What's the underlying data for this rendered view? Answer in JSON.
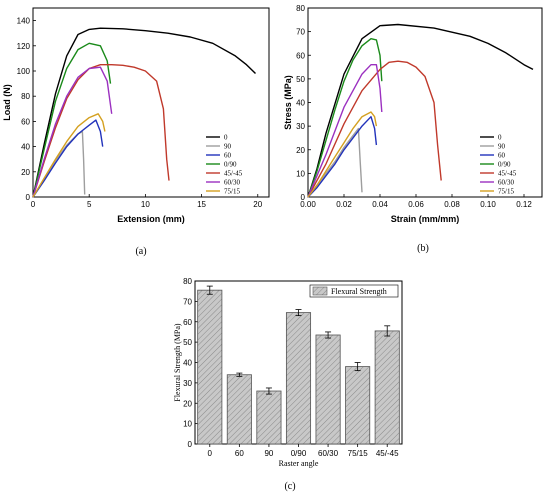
{
  "chart_data": [
    {
      "type": "line",
      "panel_label": "(a)",
      "xlabel": "Extension (mm)",
      "ylabel": "Load (N)",
      "xlim": [
        0,
        21
      ],
      "ylim": [
        0,
        150
      ],
      "xticks": [
        0,
        5,
        10,
        15,
        20
      ],
      "yticks": [
        0,
        20,
        40,
        60,
        80,
        100,
        120,
        140
      ],
      "legend_position": "bottom-right",
      "series": [
        {
          "name": "0",
          "color": "#000000",
          "x": [
            0,
            1,
            2,
            3,
            4,
            5,
            6,
            8,
            10,
            12,
            14,
            16,
            18,
            19,
            19.8
          ],
          "y": [
            0,
            42,
            82,
            112,
            129,
            133,
            134,
            133.5,
            132,
            130,
            127,
            122,
            112,
            105,
            98
          ]
        },
        {
          "name": "90",
          "color": "#9e9e9e",
          "x": [
            0,
            1,
            2,
            3,
            4,
            4.4,
            4.5,
            4.6
          ],
          "y": [
            0,
            14,
            29,
            41,
            50,
            52,
            30,
            2
          ]
        },
        {
          "name": "60",
          "color": "#2233bb",
          "x": [
            0,
            1,
            2,
            3,
            4,
            5,
            5.6,
            6,
            6.2
          ],
          "y": [
            0,
            13,
            27,
            40,
            50,
            57,
            61,
            52,
            40
          ]
        },
        {
          "name": "0/90",
          "color": "#1a8a1a",
          "x": [
            0,
            1,
            2,
            3,
            4,
            5,
            6,
            6.6,
            6.9
          ],
          "y": [
            0,
            38,
            76,
            102,
            117,
            122,
            120,
            108,
            90
          ]
        },
        {
          "name": "45/-45",
          "color": "#c0392b",
          "x": [
            0,
            1,
            2,
            3,
            4,
            5,
            6,
            7,
            8,
            9,
            10,
            11,
            11.6,
            11.9,
            12.1
          ],
          "y": [
            0,
            28,
            55,
            78,
            93,
            102,
            105,
            105,
            104.5,
            103,
            100,
            92,
            70,
            30,
            13
          ]
        },
        {
          "name": "60/30",
          "color": "#9b30c0",
          "x": [
            0,
            1,
            2,
            3,
            4,
            5,
            6,
            6.6,
            7.0
          ],
          "y": [
            0,
            30,
            58,
            80,
            95,
            102,
            103,
            92,
            66
          ]
        },
        {
          "name": "75/15",
          "color": "#d4a020",
          "x": [
            0,
            1,
            2,
            3,
            4,
            5,
            5.8,
            6.2,
            6.4
          ],
          "y": [
            0,
            15,
            30,
            44,
            56,
            63,
            66,
            60,
            52
          ]
        }
      ]
    },
    {
      "type": "line",
      "panel_label": "(b)",
      "xlabel": "Strain (mm/mm)",
      "ylabel": "Stress (MPa)",
      "xlim": [
        0,
        0.13
      ],
      "ylim": [
        0,
        80
      ],
      "xticks": [
        0.0,
        0.02,
        0.04,
        0.06,
        0.08,
        0.1,
        0.12
      ],
      "xtick_labels": [
        "0.00",
        "0.02",
        "0.04",
        "0.06",
        "0.08",
        "0.10",
        "0.12"
      ],
      "yticks": [
        0,
        10,
        20,
        30,
        40,
        50,
        60,
        70,
        80
      ],
      "legend_position": "bottom-right",
      "series": [
        {
          "name": "0",
          "color": "#000000",
          "x": [
            0,
            0.005,
            0.01,
            0.02,
            0.03,
            0.04,
            0.05,
            0.07,
            0.09,
            0.1,
            0.11,
            0.12,
            0.125
          ],
          "y": [
            0,
            12,
            27,
            52,
            67,
            72.5,
            73,
            71.5,
            68,
            65,
            61,
            56,
            54
          ]
        },
        {
          "name": "90",
          "color": "#9e9e9e",
          "x": [
            0,
            0.005,
            0.01,
            0.015,
            0.02,
            0.025,
            0.028,
            0.029,
            0.03
          ],
          "y": [
            0,
            5,
            10,
            15,
            21,
            26,
            29,
            15,
            2
          ]
        },
        {
          "name": "60",
          "color": "#2233bb",
          "x": [
            0,
            0.005,
            0.01,
            0.015,
            0.02,
            0.025,
            0.03,
            0.035,
            0.037,
            0.038
          ],
          "y": [
            0,
            4,
            9,
            14,
            20,
            25,
            30,
            34,
            29,
            22
          ]
        },
        {
          "name": "0/90",
          "color": "#1a8a1a",
          "x": [
            0,
            0.005,
            0.01,
            0.015,
            0.02,
            0.025,
            0.03,
            0.035,
            0.038,
            0.04,
            0.041
          ],
          "y": [
            0,
            11,
            24,
            37,
            49,
            58,
            64,
            67,
            66.5,
            60,
            49
          ]
        },
        {
          "name": "45/-45",
          "color": "#c0392b",
          "x": [
            0,
            0.01,
            0.02,
            0.03,
            0.04,
            0.045,
            0.05,
            0.055,
            0.06,
            0.065,
            0.07,
            0.072,
            0.074
          ],
          "y": [
            0,
            14,
            31,
            45,
            54,
            57,
            57.5,
            57,
            55,
            51,
            40,
            22,
            7
          ]
        },
        {
          "name": "60/30",
          "color": "#9b30c0",
          "x": [
            0,
            0.005,
            0.01,
            0.02,
            0.03,
            0.035,
            0.038,
            0.04,
            0.041
          ],
          "y": [
            0,
            9,
            18,
            38,
            52,
            56,
            56,
            46,
            36
          ]
        },
        {
          "name": "75/15",
          "color": "#d4a020",
          "x": [
            0,
            0.005,
            0.01,
            0.015,
            0.02,
            0.025,
            0.03,
            0.035,
            0.037,
            0.038
          ],
          "y": [
            0,
            5,
            11,
            17,
            23,
            29,
            34,
            36,
            34,
            30
          ]
        }
      ]
    },
    {
      "type": "bar",
      "panel_label": "(c)",
      "xlabel": "Raster angle",
      "ylabel": "Flexural Strength (MPa)",
      "ylim": [
        0,
        80
      ],
      "yticks": [
        0,
        10,
        20,
        30,
        40,
        50,
        60,
        70,
        80
      ],
      "legend_position": "top-right",
      "categories": [
        "0",
        "60",
        "90",
        "0/90",
        "60/30",
        "75/15",
        "45/-45"
      ],
      "series": [
        {
          "name": "Flexural Strength",
          "color": "#c8c8c8",
          "values": [
            75.5,
            34,
            26,
            64.5,
            53.5,
            38,
            55.5
          ],
          "errors": [
            2,
            0.8,
            1.5,
            1.5,
            1.5,
            2,
            2.5
          ]
        }
      ]
    }
  ]
}
